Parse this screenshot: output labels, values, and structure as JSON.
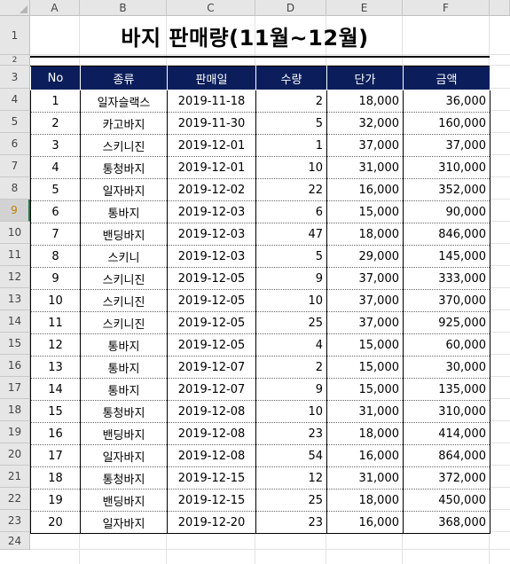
{
  "columns": [
    "A",
    "B",
    "C",
    "D",
    "E",
    "F"
  ],
  "rows": [
    "1",
    "2",
    "3",
    "4",
    "5",
    "6",
    "7",
    "8",
    "9",
    "10",
    "11",
    "12",
    "13",
    "14",
    "15",
    "16",
    "17",
    "18",
    "19",
    "20",
    "21",
    "22",
    "23",
    "24"
  ],
  "selected_row": "9",
  "title": "바지 판매량(11월~12월)",
  "headers": [
    "No",
    "종류",
    "판매일",
    "수량",
    "단가",
    "금액"
  ],
  "records": [
    [
      "1",
      "일자슬랙스",
      "2019-11-18",
      "2",
      "18,000",
      "36,000"
    ],
    [
      "2",
      "카고바지",
      "2019-11-30",
      "5",
      "32,000",
      "160,000"
    ],
    [
      "3",
      "스키니진",
      "2019-12-01",
      "1",
      "37,000",
      "37,000"
    ],
    [
      "4",
      "통청바지",
      "2019-12-01",
      "10",
      "31,000",
      "310,000"
    ],
    [
      "5",
      "일자바지",
      "2019-12-02",
      "22",
      "16,000",
      "352,000"
    ],
    [
      "6",
      "통바지",
      "2019-12-03",
      "6",
      "15,000",
      "90,000"
    ],
    [
      "7",
      "밴딩바지",
      "2019-12-03",
      "47",
      "18,000",
      "846,000"
    ],
    [
      "8",
      "스키니",
      "2019-12-03",
      "5",
      "29,000",
      "145,000"
    ],
    [
      "9",
      "스키니진",
      "2019-12-05",
      "9",
      "37,000",
      "333,000"
    ],
    [
      "10",
      "스키니진",
      "2019-12-05",
      "10",
      "37,000",
      "370,000"
    ],
    [
      "11",
      "스키니진",
      "2019-12-05",
      "25",
      "37,000",
      "925,000"
    ],
    [
      "12",
      "통바지",
      "2019-12-05",
      "4",
      "15,000",
      "60,000"
    ],
    [
      "13",
      "통바지",
      "2019-12-07",
      "2",
      "15,000",
      "30,000"
    ],
    [
      "14",
      "통바지",
      "2019-12-07",
      "9",
      "15,000",
      "135,000"
    ],
    [
      "15",
      "통청바지",
      "2019-12-08",
      "10",
      "31,000",
      "310,000"
    ],
    [
      "16",
      "밴딩바지",
      "2019-12-08",
      "23",
      "18,000",
      "414,000"
    ],
    [
      "17",
      "일자바지",
      "2019-12-08",
      "54",
      "16,000",
      "864,000"
    ],
    [
      "18",
      "통청바지",
      "2019-12-15",
      "12",
      "31,000",
      "372,000"
    ],
    [
      "19",
      "밴딩바지",
      "2019-12-15",
      "25",
      "18,000",
      "450,000"
    ],
    [
      "20",
      "일자바지",
      "2019-12-20",
      "23",
      "16,000",
      "368,000"
    ]
  ]
}
